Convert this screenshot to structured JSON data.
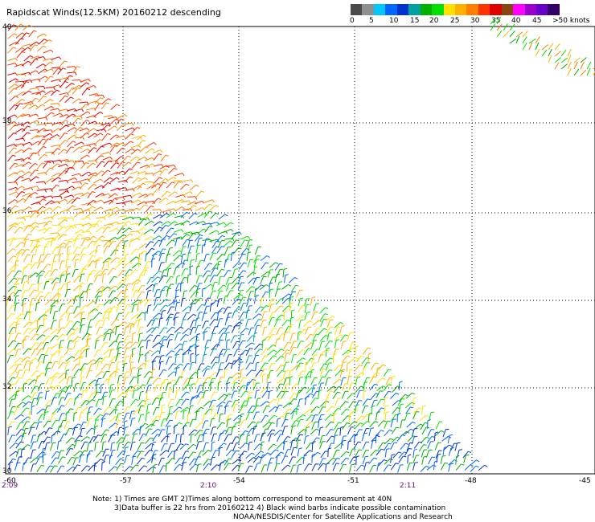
{
  "title": "Rapidscat Winds(12.5KM) 20160212 descending",
  "legend": {
    "colors": [
      "#4a4a4a",
      "#8f8f8f",
      "#00c8ff",
      "#0066ff",
      "#0033cc",
      "#00a0a0",
      "#00b000",
      "#00e000",
      "#ffe000",
      "#ffb000",
      "#ff8000",
      "#ff3300",
      "#e00000",
      "#8b4513",
      "#ff00ff",
      "#9900cc",
      "#6600cc",
      "#330066"
    ],
    "labels": [
      "0",
      "5",
      "10",
      "15",
      "20",
      "25",
      "30",
      "35",
      "40",
      "45",
      ">50 knots"
    ]
  },
  "lat_labels": [
    "40",
    "38",
    "36",
    "34",
    "32",
    "30"
  ],
  "lon_labels": [
    "-60",
    "-57",
    "-54",
    "-51",
    "-48",
    "-45"
  ],
  "time_labels": [
    "2:09",
    "2:10",
    "2:11"
  ],
  "notes": {
    "line1": "Note: 1) Times are GMT 2)Times along bottom correspond to measurement at 40N",
    "line2": "3)Data buffer is 22 hrs from 20160212 4) Black wind barbs indicate possible contamination",
    "line3": "NOAA/NESDIS/Center for Satellite Applications and Research"
  }
}
